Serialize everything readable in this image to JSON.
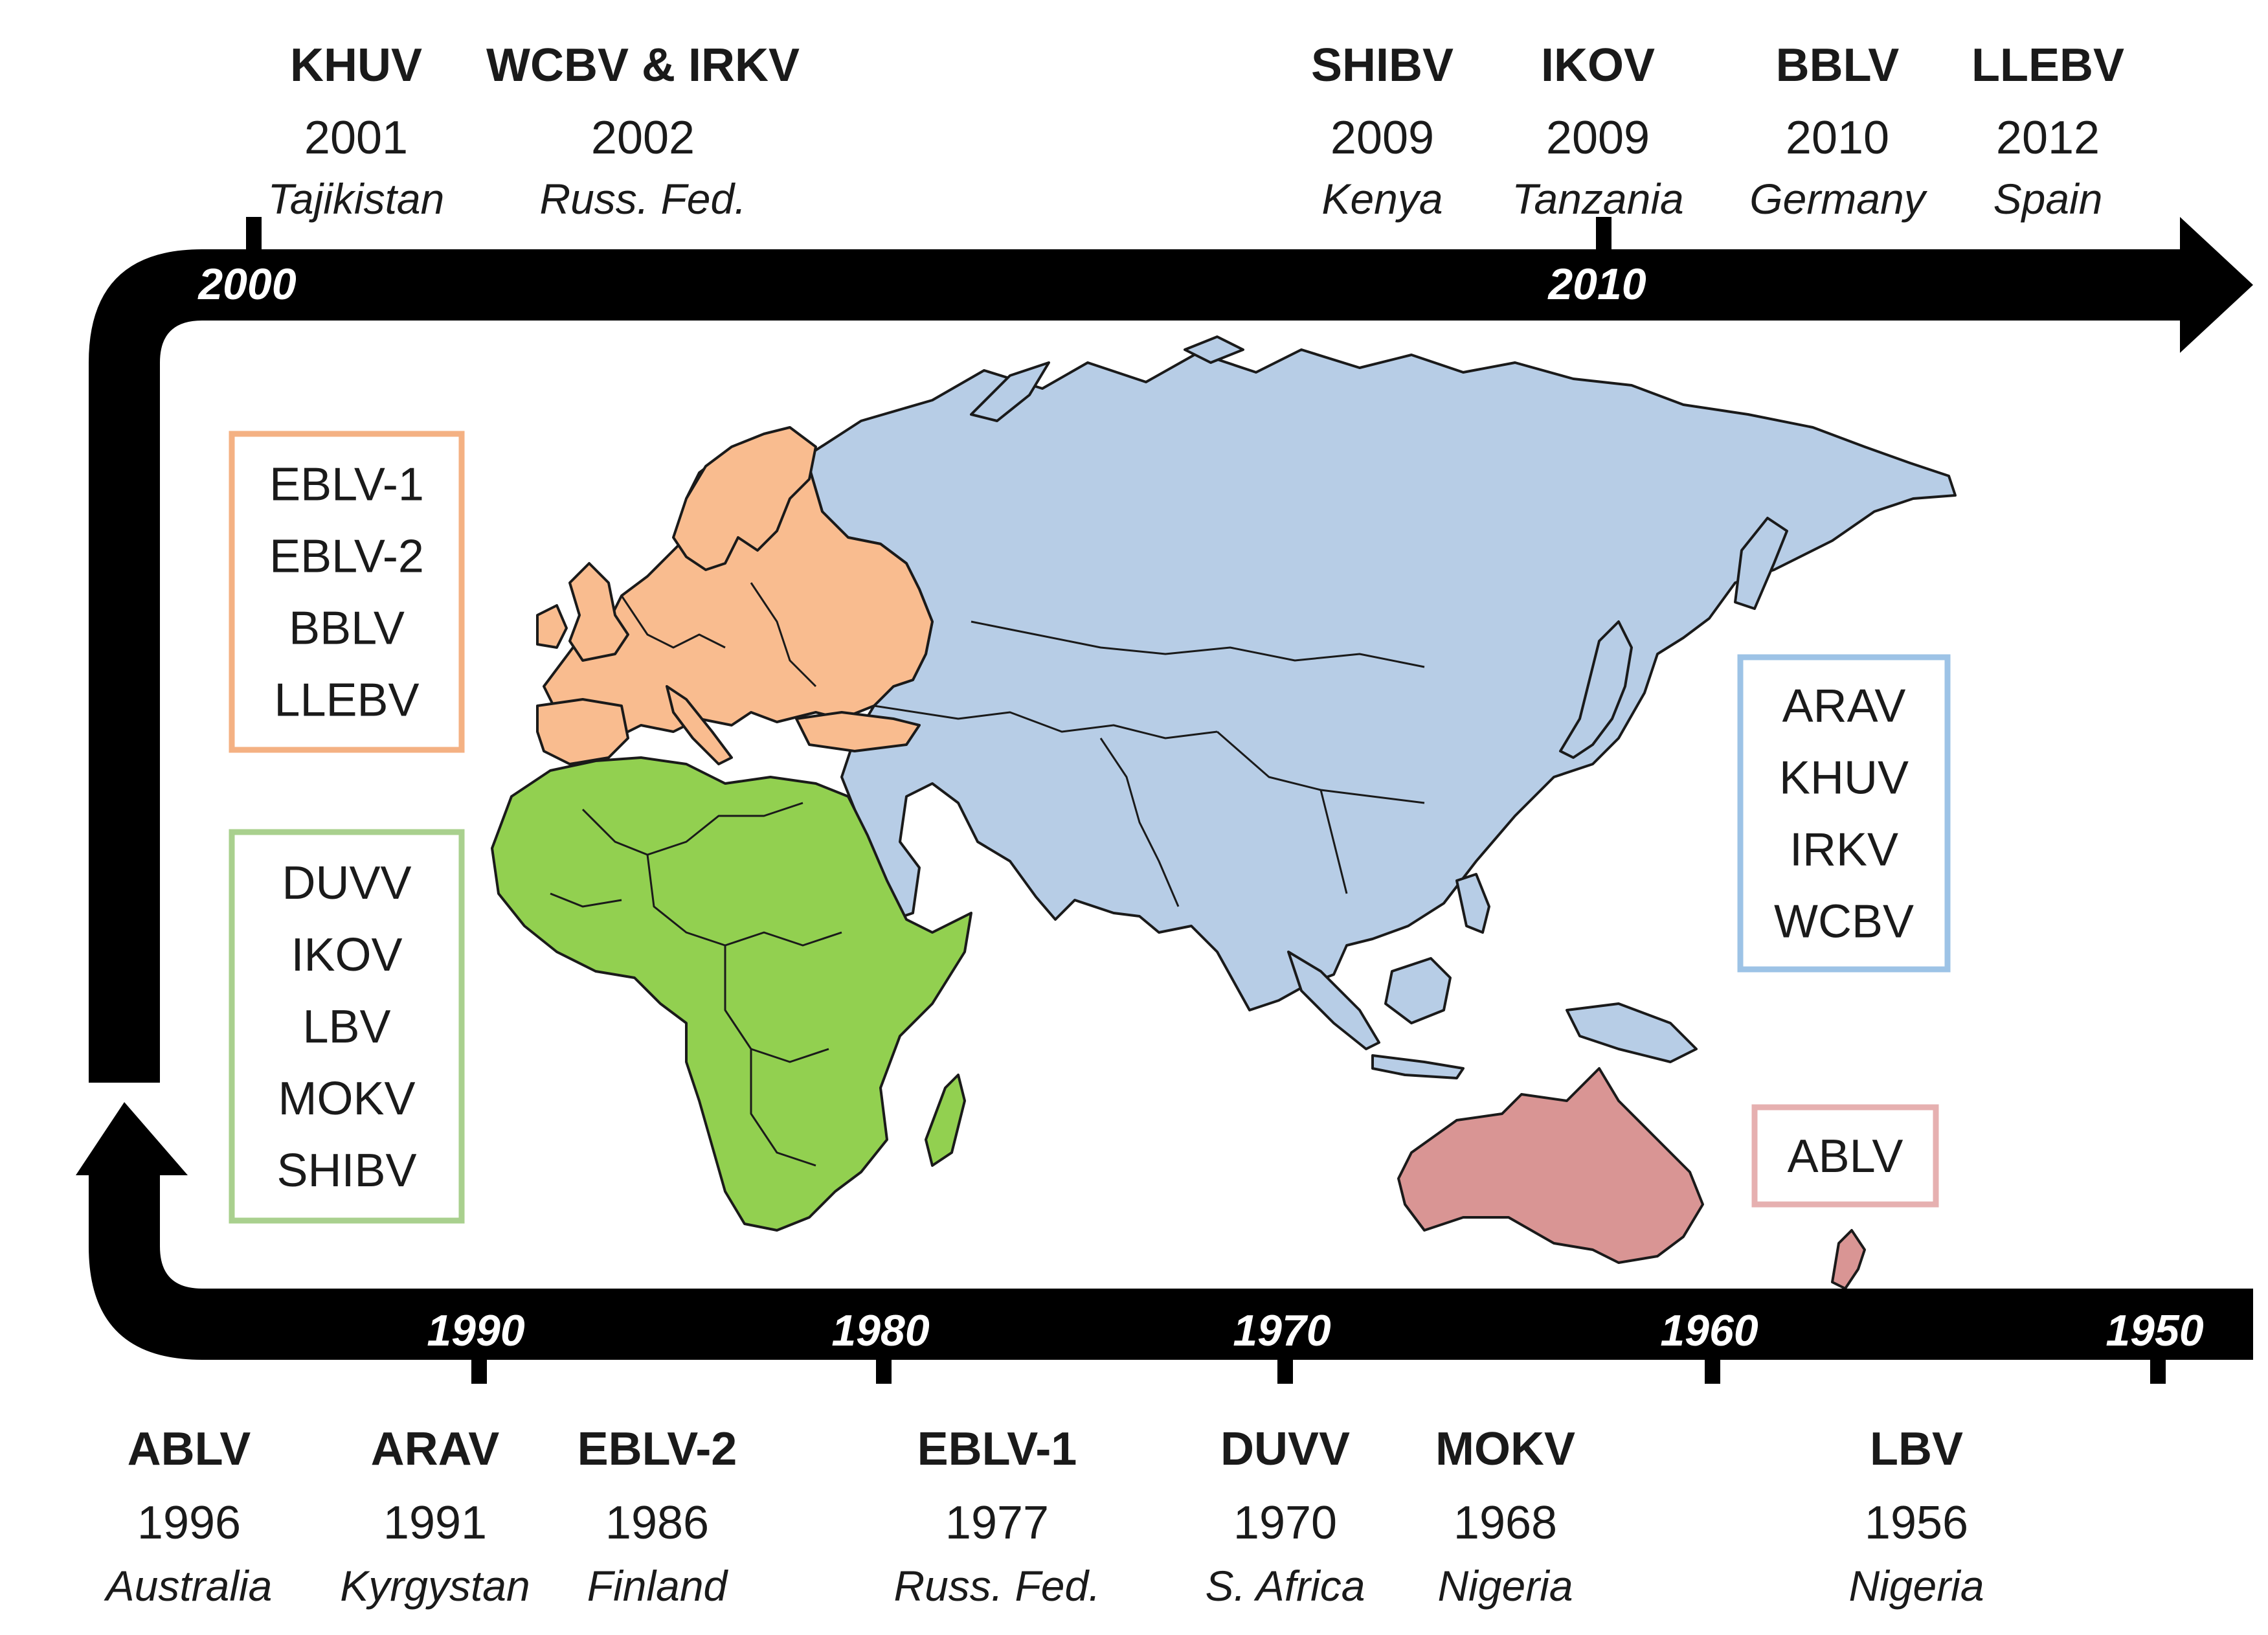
{
  "colors": {
    "arrow": "#000000",
    "europe": "#f9bc8f",
    "africa": "#92d050",
    "asia": "#b7cde6",
    "australasia": "#d99594",
    "europe_box": "#f4b183",
    "africa_box": "#a9d08e",
    "asia_box": "#9dc3e6",
    "australasia_box": "#e6b0b0"
  },
  "top_ticks": [
    {
      "label": "2000",
      "year": 2000
    },
    {
      "label": "2010",
      "year": 2010
    }
  ],
  "bottom_ticks": [
    {
      "label": "1990",
      "year": 1990
    },
    {
      "label": "1980",
      "year": 1980
    },
    {
      "label": "1970",
      "year": 1970
    },
    {
      "label": "1960",
      "year": 1960
    },
    {
      "label": "1950",
      "year": 1950
    }
  ],
  "top_events": [
    {
      "name": "KHUV",
      "year": "2001",
      "place": "Tajikistan"
    },
    {
      "name": "WCBV & IRKV",
      "year": "2002",
      "place": "Russ. Fed."
    },
    {
      "name": "SHIBV",
      "year": "2009",
      "place": "Kenya"
    },
    {
      "name": "IKOV",
      "year": "2009",
      "place": "Tanzania"
    },
    {
      "name": "BBLV",
      "year": "2010",
      "place": "Germany"
    },
    {
      "name": "LLEBV",
      "year": "2012",
      "place": "Spain"
    }
  ],
  "bottom_events": [
    {
      "name": "ABLV",
      "year": "1996",
      "place": "Australia"
    },
    {
      "name": "ARAV",
      "year": "1991",
      "place": "Kyrgystan"
    },
    {
      "name": "EBLV-2",
      "year": "1986",
      "place": "Finland"
    },
    {
      "name": "EBLV-1",
      "year": "1977",
      "place": "Russ. Fed."
    },
    {
      "name": "DUVV",
      "year": "1970",
      "place": "S. Africa"
    },
    {
      "name": "MOKV",
      "year": "1968",
      "place": "Nigeria"
    },
    {
      "name": "LBV",
      "year": "1956",
      "place": "Nigeria"
    }
  ],
  "regions": {
    "europe": [
      "EBLV-1",
      "EBLV-2",
      "BBLV",
      "LLEBV"
    ],
    "africa": [
      "DUVV",
      "IKOV",
      "LBV",
      "MOKV",
      "SHIBV"
    ],
    "asia": [
      "ARAV",
      "KHUV",
      "IRKV",
      "WCBV"
    ],
    "australasia": [
      "ABLV"
    ]
  }
}
